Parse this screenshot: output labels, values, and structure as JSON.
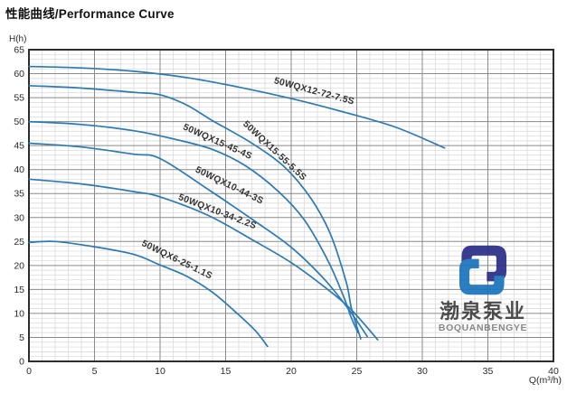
{
  "page": {
    "background": "#ffffff"
  },
  "logo": {
    "cn": "渤泉泵业",
    "en": "BOQUANBENGYE",
    "mark_dark": "#2b2e87",
    "mark_light": "#1c75bc",
    "cn_color": "#3f3f3f",
    "en_color": "#7f7f7f"
  },
  "chart_data": {
    "type": "line",
    "title": "性能曲线/Performance Curve",
    "xlabel": "Q(m³/h)",
    "ylabel": "H(h)",
    "xlim": [
      0,
      40
    ],
    "ylim": [
      0,
      65
    ],
    "x_ticks": [
      0,
      5,
      10,
      15,
      20,
      25,
      30,
      35,
      40
    ],
    "y_ticks": [
      0,
      5,
      10,
      15,
      20,
      25,
      30,
      35,
      40,
      45,
      50,
      55,
      60,
      65
    ],
    "grid": {
      "minor_step": 1,
      "major_step": 5,
      "minor_color": "#d6d6d6",
      "major_color": "#8a8a8a",
      "border_color": "#2d2d2d",
      "background": "#ffffff"
    },
    "curve_color": "#2a7ab5",
    "label_style": "inline-rotated",
    "legend_position": "none",
    "series": [
      {
        "name": "50WQX12-72-7.5S",
        "points": [
          [
            0,
            61.5
          ],
          [
            4,
            61.2
          ],
          [
            8,
            60.5
          ],
          [
            12,
            59.2
          ],
          [
            16,
            57.2
          ],
          [
            20,
            54.8
          ],
          [
            24,
            52
          ],
          [
            28,
            48.8
          ],
          [
            31.7,
            44.5
          ]
        ],
        "label": {
          "q": 21.7,
          "h": 55.8,
          "angle": 15
        }
      },
      {
        "name": "50WQX15-55-5.5S",
        "points": [
          [
            0,
            57.5
          ],
          [
            4,
            57
          ],
          [
            8,
            56.1
          ],
          [
            10,
            55.6
          ],
          [
            12,
            53.5
          ],
          [
            14,
            50.2
          ],
          [
            17,
            45.5
          ],
          [
            19.5,
            40.5
          ],
          [
            21.5,
            34
          ],
          [
            23,
            26.5
          ],
          [
            24.2,
            16.5
          ],
          [
            24.6,
            11
          ],
          [
            25.3,
            4.7
          ]
        ],
        "label": {
          "q": 18.6,
          "h": 43.5,
          "angle": 43
        }
      },
      {
        "name": "50WQX15-45-4S",
        "points": [
          [
            0,
            50
          ],
          [
            4,
            49.4
          ],
          [
            8,
            48.1
          ],
          [
            11,
            46.4
          ],
          [
            14,
            44.2
          ],
          [
            16.5,
            40.8
          ],
          [
            19,
            35.5
          ],
          [
            21,
            29.5
          ],
          [
            22.8,
            21
          ],
          [
            24,
            13.5
          ],
          [
            24.6,
            9
          ],
          [
            25.1,
            6
          ]
        ],
        "label": {
          "q": 14.3,
          "h": 45.3,
          "angle": 24
        }
      },
      {
        "name": "50WQX10-44-3S",
        "points": [
          [
            0,
            45.5
          ],
          [
            4,
            44.7
          ],
          [
            8,
            43.2
          ],
          [
            10,
            42.3
          ],
          [
            13.7,
            35.8
          ],
          [
            17.2,
            29.3
          ],
          [
            20,
            23.8
          ],
          [
            22.5,
            17.2
          ],
          [
            24.4,
            10.8
          ],
          [
            25.8,
            5.2
          ]
        ],
        "label": {
          "q": 15.2,
          "h": 36.2,
          "angle": 26
        }
      },
      {
        "name": "50WQX10-34-2.2S",
        "points": [
          [
            0,
            38
          ],
          [
            4,
            37
          ],
          [
            8,
            35.4
          ],
          [
            10,
            34.3
          ],
          [
            13.7,
            30.4
          ],
          [
            17.2,
            25.1
          ],
          [
            20,
            20.6
          ],
          [
            22.5,
            15.6
          ],
          [
            24.5,
            11
          ],
          [
            26.6,
            4.5
          ]
        ],
        "label": {
          "q": 14.3,
          "h": 30.7,
          "angle": 21
        }
      },
      {
        "name": "50WQX6-25-1.1S",
        "points": [
          [
            0,
            24.8
          ],
          [
            2,
            25
          ],
          [
            5,
            23.9
          ],
          [
            8,
            22.3
          ],
          [
            10,
            20.1
          ],
          [
            12,
            17.8
          ],
          [
            14,
            14.4
          ],
          [
            16,
            9.7
          ],
          [
            17.3,
            6.3
          ],
          [
            18.2,
            3.1
          ]
        ],
        "label": {
          "q": 11.2,
          "h": 20.7,
          "angle": 26
        }
      }
    ]
  }
}
